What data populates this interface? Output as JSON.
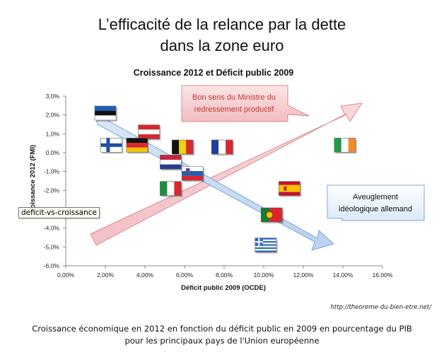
{
  "title_line1": "L’efficacité de la relance par la dette",
  "title_line2": "dans la zone euro",
  "tooltip": "deficit-vs-croissance",
  "credit": "http://theoreme-du-bien-etre.net/",
  "caption_line1": "Croissance économique en 2012 en fonction du déficit public en 2009 en pourcentage du PIB",
  "caption_line2": "pour les principaux pays de l'Union européenne",
  "colors": {
    "pink_arrow": "#f4c6ca",
    "pink_border": "#d98a92",
    "blue_arrow": "#c9dcf2",
    "blue_border": "#7ea6d6"
  },
  "chart_data": {
    "type": "scatter",
    "title": "Croissance 2012 et Déficit public 2009",
    "xlabel": "Déficit public 2009 (OCDE)",
    "ylabel": "Croissance 2012 (FMI)",
    "xlim": [
      0,
      16
    ],
    "ylim": [
      -6,
      3
    ],
    "x_ticks": [
      "0,00%",
      "2,00%",
      "4,00%",
      "6,00%",
      "8,00%",
      "10,00%",
      "12,00%",
      "14,00%",
      "16,00%"
    ],
    "y_ticks": [
      "3,0%",
      "2,0%",
      "1,0%",
      "0,0%",
      "-1,0%",
      "-2,0%",
      "-3,0%",
      "-4,0%",
      "-5,0%",
      "-6,0%"
    ],
    "grid": false,
    "points": [
      {
        "x": 2.0,
        "y": 2.1,
        "icon": "estonia-flag-icon"
      },
      {
        "x": 2.3,
        "y": 0.4,
        "icon": "finland-flag-icon"
      },
      {
        "x": 4.2,
        "y": 1.1,
        "icon": "austria-flag-icon"
      },
      {
        "x": 3.6,
        "y": 0.4,
        "icon": "germany-flag-icon"
      },
      {
        "x": 5.9,
        "y": 0.3,
        "icon": "belgium-flag-icon"
      },
      {
        "x": 5.3,
        "y": -0.5,
        "icon": "netherlands-flag-icon"
      },
      {
        "x": 6.4,
        "y": -1.1,
        "icon": "slovenia-flag-icon"
      },
      {
        "x": 5.3,
        "y": -1.9,
        "icon": "italy-flag-icon"
      },
      {
        "x": 7.9,
        "y": 0.3,
        "icon": "france-flag-icon"
      },
      {
        "x": 11.3,
        "y": -1.9,
        "icon": "spain-flag-icon"
      },
      {
        "x": 10.4,
        "y": -3.3,
        "icon": "portugal-flag-icon"
      },
      {
        "x": 10.1,
        "y": -4.9,
        "icon": "greece-flag-icon"
      },
      {
        "x": 14.1,
        "y": 0.4,
        "icon": "ireland-flag-icon"
      }
    ],
    "annotations": [
      {
        "text_lines": [
          "Bon sens du Ministre du",
          "redressement  productif"
        ],
        "style": "pink-arrow"
      },
      {
        "text_lines": [
          "Aveuglement",
          "idéologique allemand"
        ],
        "style": "blue-arrow"
      }
    ]
  }
}
